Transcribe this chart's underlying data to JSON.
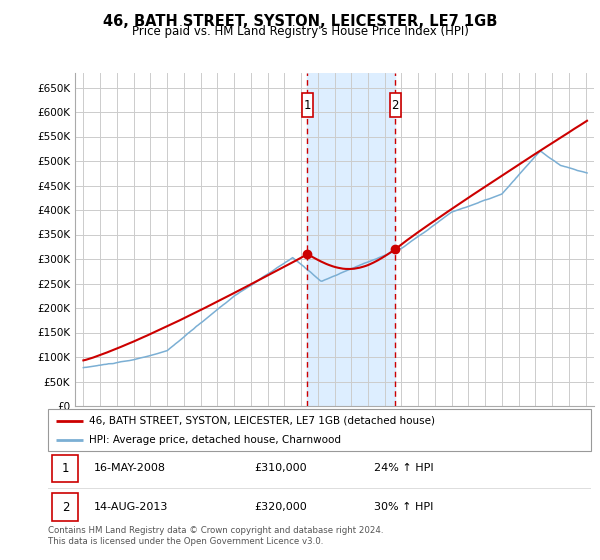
{
  "title": "46, BATH STREET, SYSTON, LEICESTER, LE7 1GB",
  "subtitle": "Price paid vs. HM Land Registry's House Price Index (HPI)",
  "legend_line1": "46, BATH STREET, SYSTON, LEICESTER, LE7 1GB (detached house)",
  "legend_line2": "HPI: Average price, detached house, Charnwood",
  "ann1": {
    "label": "1",
    "date": "16-MAY-2008",
    "price": "£310,000",
    "pct": "24% ↑ HPI",
    "x_year": 2008.38,
    "y_val": 310000
  },
  "ann2": {
    "label": "2",
    "date": "14-AUG-2013",
    "price": "£320,000",
    "pct": "30% ↑ HPI",
    "x_year": 2013.62,
    "y_val": 320000
  },
  "footer": "Contains HM Land Registry data © Crown copyright and database right 2024.\nThis data is licensed under the Open Government Licence v3.0.",
  "red_color": "#cc0000",
  "blue_color": "#7bafd4",
  "background_color": "#ffffff",
  "grid_color": "#cccccc",
  "highlight_fill": "#ddeeff",
  "ylim": [
    0,
    680000
  ],
  "yticks": [
    0,
    50000,
    100000,
    150000,
    200000,
    250000,
    300000,
    350000,
    400000,
    450000,
    500000,
    550000,
    600000,
    650000
  ],
  "xlim_start": 1994.5,
  "xlim_end": 2025.5
}
